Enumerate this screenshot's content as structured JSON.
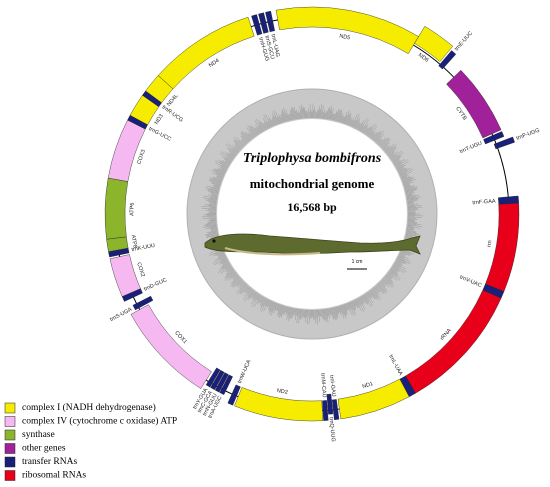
{
  "title": "Triplophysa bombifrons",
  "subtitle": "mitochondrial genome",
  "length": "16,568 bp",
  "scale_label": "1 cm",
  "genes": [
    "ND5",
    "ND6",
    "trnE-UUC",
    "CYTB",
    "trnT-UGU",
    "trnP-UGG",
    "trnF-GAA",
    "rrn",
    "trnV-UAC",
    "rRNA",
    "trnL-UAA",
    "ND1",
    "trnI-GAU",
    "trnQ-UUG",
    "trnM-CAU",
    "ND2",
    "trnW-UCA",
    "trnA-UGC",
    "trnN-GUU",
    "trnC-GCA",
    "trnY-GUA",
    "COX1",
    "trnS-UGA",
    "trnD-GUC",
    "COX2",
    "trnK-UUU",
    "ATP8",
    "ATP6",
    "COX3",
    "trnG-UCC",
    "ND3",
    "trnR-UCG",
    "ND4L",
    "ND4",
    "trnH-GUG",
    "trnS-GCU",
    "trnL-UAG"
  ],
  "legend": [
    "complex I (NADH dehydrogenase)",
    "complex IV (cytochrome c oxidase) ATP",
    "synthase",
    "other genes",
    "transfer RNAs",
    "ribosomal RNAs"
  ]
}
